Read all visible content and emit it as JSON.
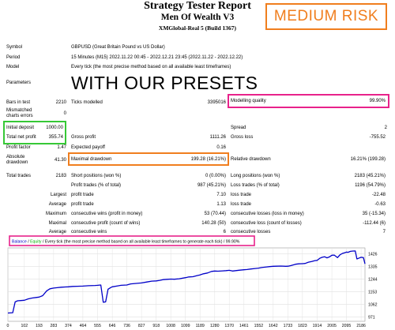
{
  "header": {
    "title": "Strategy Tester Report",
    "subtitle": "Men Of Wealth V3",
    "build": "XMGlobal-Real 5 (Build 1367)"
  },
  "badge": {
    "text": "MEDIUM RISK",
    "color": "#f07e1e"
  },
  "settings": {
    "symbol_label": "Symbol",
    "symbol_value": "GBPUSD (Great Britain Pound vs US Dollar)",
    "period_label": "Period",
    "period_value": "15 Minutes (M15) 2022.11.22 00:45 - 2022.12.21 23:45 (2022.11.22 - 2022.12.22)",
    "model_label": "Model",
    "model_value": "Every tick (the most precise method based on all available least timeframes)",
    "parameters_label": "Parameters",
    "overlay_text": "WITH OUR PRESETS"
  },
  "stats": {
    "bars_label": "Bars in test",
    "bars_value": "2210",
    "ticks_label": "Ticks modelled",
    "ticks_value": "3395016",
    "quality_label": "Modelling quality",
    "quality_value": "99.90%",
    "mismatch_label_1": "Mismatched",
    "mismatch_label_2": "charts errors",
    "mismatch_value": "0",
    "deposit_label": "Initial deposit",
    "deposit_value": "1000.00",
    "spread_label": "Spread",
    "spread_value": "2",
    "netprofit_label": "Total net profit",
    "netprofit_value": "355.74",
    "grossprofit_label": "Gross profit",
    "grossprofit_value": "1111.26",
    "grossloss_label": "Gross loss",
    "grossloss_value": "-755.52",
    "pf_label": "Profit factor",
    "pf_value": "1.47",
    "payoff_label": "Expected payoff",
    "payoff_value": "0.16",
    "absdd_label_1": "Absolute",
    "absdd_label_2": "drawdown",
    "absdd_value": "41.30",
    "maxdd_label": "Maximal drawdown",
    "maxdd_value": "199.28 (16.21%)",
    "reldd_label": "Relative drawdown",
    "reldd_value": "16.21% (199.28)",
    "trades_label": "Total trades",
    "trades_value": "2183",
    "short_label": "Short positions (won %)",
    "short_value": "0 (0.00%)",
    "long_label": "Long positions (won %)",
    "long_value": "2183 (45.21%)",
    "ptrades_label": "Profit trades (% of total)",
    "ptrades_value": "987 (45.21%)",
    "ltrades_label": "Loss trades (% of total)",
    "ltrades_value": "1196 (54.79%)",
    "largest_label": "Largest",
    "largest_profit_label": "profit trade",
    "largest_profit_value": "7.10",
    "largest_loss_label": "loss trade",
    "largest_loss_value": "-22.48",
    "average_label": "Average",
    "avg_profit_label": "profit trade",
    "avg_profit_value": "1.13",
    "avg_loss_label": "loss trade",
    "avg_loss_value": "-0.63",
    "maximum_label": "Maximum",
    "max_wins_label": "consecutive wins (profit in money)",
    "max_wins_value": "53 (70.44)",
    "max_losses_label": "consecutive losses (loss in money)",
    "max_losses_value": "35 (-15.34)",
    "maximal_label": "Maximal",
    "mx_profit_label": "consecutive profit (count of wins)",
    "mx_profit_value": "140.28 (50)",
    "mx_loss_label": "consecutive loss (count of losses)",
    "mx_loss_value": "-112.44 (6)",
    "average2_label": "Average",
    "avg_wins_label": "consecutive wins",
    "avg_wins_value": "6",
    "avg_losses_label": "consecutive losses",
    "avg_losses_value": "7"
  },
  "chart_data": {
    "type": "line",
    "legend": {
      "balance": "Balance",
      "sep": " / ",
      "equity": "Equity",
      "rest": " / Every tick (the most precise method based on all available least timeframes to generate each tick)",
      "sep2": " / ",
      "quality": "99.90%"
    },
    "colors": {
      "balance": "#0000c8",
      "equity": "#00b000"
    },
    "x_ticks": [
      0,
      102,
      193,
      283,
      374,
      464,
      555,
      646,
      736,
      827,
      918,
      1008,
      1099,
      1189,
      1280,
      1370,
      1461,
      1552,
      1642,
      1733,
      1823,
      1914,
      2005,
      2095,
      2186
    ],
    "x_range": [
      0,
      2210
    ],
    "y_ticks": [
      1426,
      1335,
      1244,
      1153,
      1062,
      971
    ],
    "y_range": [
      940,
      1470
    ],
    "balance": [
      [
        0,
        1000
      ],
      [
        30,
        1002
      ],
      [
        45,
        1080
      ],
      [
        60,
        1088
      ],
      [
        80,
        1090
      ],
      [
        102,
        1092
      ],
      [
        125,
        1102
      ],
      [
        150,
        1108
      ],
      [
        175,
        1112
      ],
      [
        193,
        1115
      ],
      [
        215,
        1125
      ],
      [
        240,
        1160
      ],
      [
        260,
        1175
      ],
      [
        283,
        1180
      ],
      [
        305,
        1183
      ],
      [
        330,
        1186
      ],
      [
        355,
        1188
      ],
      [
        374,
        1189
      ],
      [
        400,
        1192
      ],
      [
        430,
        1193
      ],
      [
        464,
        1194
      ],
      [
        500,
        1197
      ],
      [
        540,
        1199
      ],
      [
        555,
        1200
      ],
      [
        575,
        1202
      ],
      [
        590,
        1078
      ],
      [
        605,
        1080
      ],
      [
        620,
        1172
      ],
      [
        640,
        1186
      ],
      [
        646,
        1189
      ],
      [
        680,
        1196
      ],
      [
        700,
        1200
      ],
      [
        736,
        1202
      ],
      [
        760,
        1210
      ],
      [
        800,
        1214
      ],
      [
        827,
        1217
      ],
      [
        860,
        1224
      ],
      [
        890,
        1230
      ],
      [
        918,
        1232
      ],
      [
        940,
        1236
      ],
      [
        960,
        1241
      ],
      [
        985,
        1243
      ],
      [
        1008,
        1245
      ],
      [
        1030,
        1244
      ],
      [
        1060,
        1247
      ],
      [
        1099,
        1255
      ],
      [
        1120,
        1260
      ],
      [
        1145,
        1262
      ],
      [
        1170,
        1270
      ],
      [
        1189,
        1275
      ],
      [
        1210,
        1283
      ],
      [
        1235,
        1289
      ],
      [
        1260,
        1300
      ],
      [
        1280,
        1303
      ],
      [
        1300,
        1302
      ],
      [
        1330,
        1304
      ],
      [
        1350,
        1306
      ],
      [
        1370,
        1308
      ],
      [
        1390,
        1303
      ],
      [
        1410,
        1306
      ],
      [
        1430,
        1309
      ],
      [
        1461,
        1312
      ],
      [
        1480,
        1314
      ],
      [
        1505,
        1318
      ],
      [
        1530,
        1321
      ],
      [
        1552,
        1324
      ],
      [
        1570,
        1328
      ],
      [
        1590,
        1331
      ],
      [
        1620,
        1335
      ],
      [
        1642,
        1337
      ],
      [
        1660,
        1338
      ],
      [
        1690,
        1339
      ],
      [
        1720,
        1337
      ],
      [
        1733,
        1338
      ],
      [
        1750,
        1342
      ],
      [
        1780,
        1352
      ],
      [
        1800,
        1355
      ],
      [
        1823,
        1356
      ],
      [
        1840,
        1358
      ],
      [
        1860,
        1367
      ],
      [
        1880,
        1372
      ],
      [
        1900,
        1378
      ],
      [
        1914,
        1380
      ],
      [
        1930,
        1395
      ],
      [
        1945,
        1402
      ],
      [
        1960,
        1406
      ],
      [
        1975,
        1398
      ],
      [
        1990,
        1405
      ],
      [
        2005,
        1417
      ],
      [
        2020,
        1418
      ],
      [
        2040,
        1400
      ],
      [
        2055,
        1420
      ],
      [
        2070,
        1430
      ],
      [
        2085,
        1435
      ],
      [
        2095,
        1440
      ],
      [
        2105,
        1438
      ],
      [
        2120,
        1445
      ],
      [
        2135,
        1447
      ],
      [
        2150,
        1448
      ],
      [
        2160,
        1390
      ],
      [
        2170,
        1395
      ],
      [
        2186,
        1402
      ],
      [
        2200,
        1400
      ],
      [
        2210,
        1355
      ]
    ]
  }
}
